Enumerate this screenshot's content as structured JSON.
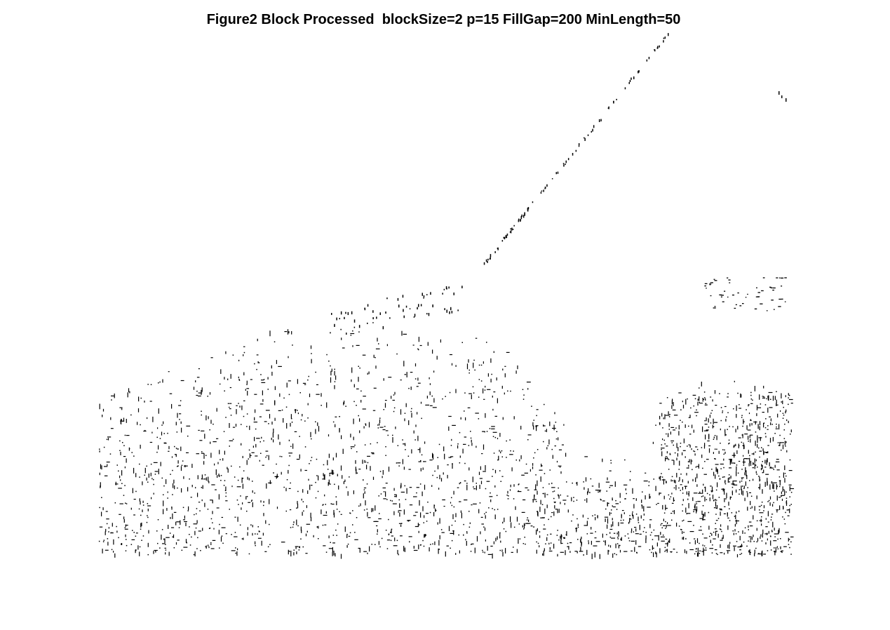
{
  "figure": {
    "title": "Figure2 Block Processed  blockSize=2 p=15 FillGap=200 MinLength=50"
  },
  "image": {
    "kind": "binary edge map",
    "background_color": "#ffffff",
    "foreground_color": "#000000",
    "content": "sparse black edge pixels: foliage texture in the lower band, a diagonal line rising to the upper right, scattered dots along a ridge"
  }
}
